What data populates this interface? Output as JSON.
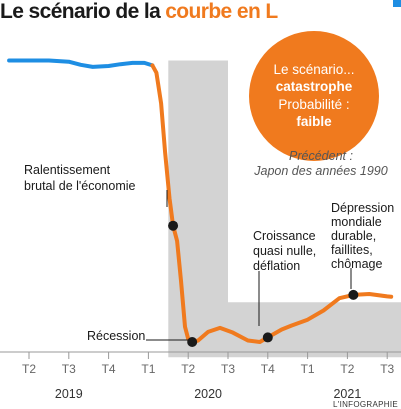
{
  "title_part1": "Le scénario de la",
  "title_part2": "courbe en L",
  "badge": {
    "line1": "Le scénario...",
    "line2": "catastrophe",
    "line3": "Probabilité :",
    "line4": "faible"
  },
  "precedent": {
    "line1": "Précédent :",
    "line2": "Japon des années 1990"
  },
  "annotations": {
    "ralentissement": [
      "Ralentissement",
      "brutal de l'économie"
    ],
    "recession": "Récession",
    "croissance": [
      "Croissance",
      "quasi nulle,",
      "déflation"
    ],
    "depression": [
      "Dépression",
      "mondiale",
      "durable,",
      "faillites,",
      "chômage"
    ]
  },
  "credit": "L'INFOGRAPHIE",
  "colors": {
    "history": "#1e8ee3",
    "scenario": "#f07a1e",
    "shape": "#d3d3d3",
    "point": "#1a1a1a",
    "accent": "#f07a1e"
  },
  "chart_data": {
    "type": "line",
    "title": "Le scénario de la courbe en L",
    "x_quarters": [
      "T2",
      "T3",
      "T4",
      "T1",
      "T2",
      "T3",
      "T4",
      "T1",
      "T2",
      "T3"
    ],
    "years": [
      {
        "label": "2019",
        "start": 0,
        "end": 2
      },
      {
        "label": "2020",
        "start": 3,
        "end": 6
      },
      {
        "label": "2021",
        "start": 7,
        "end": 9
      }
    ],
    "ylim": [
      0,
      100
    ],
    "series": [
      {
        "key": "history",
        "points": [
          [
            -0.5,
            92
          ],
          [
            0,
            92
          ],
          [
            0.5,
            92
          ],
          [
            1,
            91.6
          ],
          [
            1.3,
            90.6
          ],
          [
            1.6,
            89.9
          ],
          [
            2,
            90.2
          ],
          [
            2.3,
            90.8
          ],
          [
            2.6,
            91.2
          ],
          [
            2.9,
            91.2
          ],
          [
            3.1,
            90.4
          ]
        ]
      },
      {
        "key": "scenario",
        "points": [
          [
            3.1,
            90.4
          ],
          [
            3.2,
            88
          ],
          [
            3.32,
            78
          ],
          [
            3.42,
            62
          ],
          [
            3.53,
            47
          ],
          [
            3.62,
            38
          ],
          [
            3.72,
            33
          ],
          [
            3.82,
            20
          ],
          [
            3.92,
            5
          ],
          [
            4.0,
            1
          ],
          [
            4.1,
            0
          ],
          [
            4.25,
            0.5
          ],
          [
            4.5,
            3.3
          ],
          [
            4.8,
            4.6
          ],
          [
            5.1,
            3.2
          ],
          [
            5.5,
            0.5
          ],
          [
            5.8,
            0
          ],
          [
            6.0,
            1.5
          ],
          [
            6.35,
            4.1
          ],
          [
            6.6,
            5.4
          ],
          [
            7.0,
            7.3
          ],
          [
            7.4,
            10.3
          ],
          [
            7.8,
            14.3
          ],
          [
            8.15,
            15.4
          ],
          [
            8.55,
            15.7
          ],
          [
            9.0,
            14.9
          ],
          [
            9.1,
            14.8
          ]
        ]
      }
    ],
    "marked_points": [
      {
        "x": 3.62,
        "y": 38,
        "label": "Ralentissement brutal de l'économie"
      },
      {
        "x": 4.1,
        "y": 0,
        "label": "Récession"
      },
      {
        "x": 6.0,
        "y": 1.5,
        "label": "Croissance quasi nulle, déflation"
      },
      {
        "x": 8.15,
        "y": 15.4,
        "label": "Dépression mondiale durable, faillites, chômage"
      }
    ],
    "l_shape": {
      "x_start": 3.5,
      "x_end": 9.5,
      "bar_x_end": 5.0,
      "y_top": 92,
      "foot_y_top": 13,
      "y_bottom": -5
    }
  }
}
